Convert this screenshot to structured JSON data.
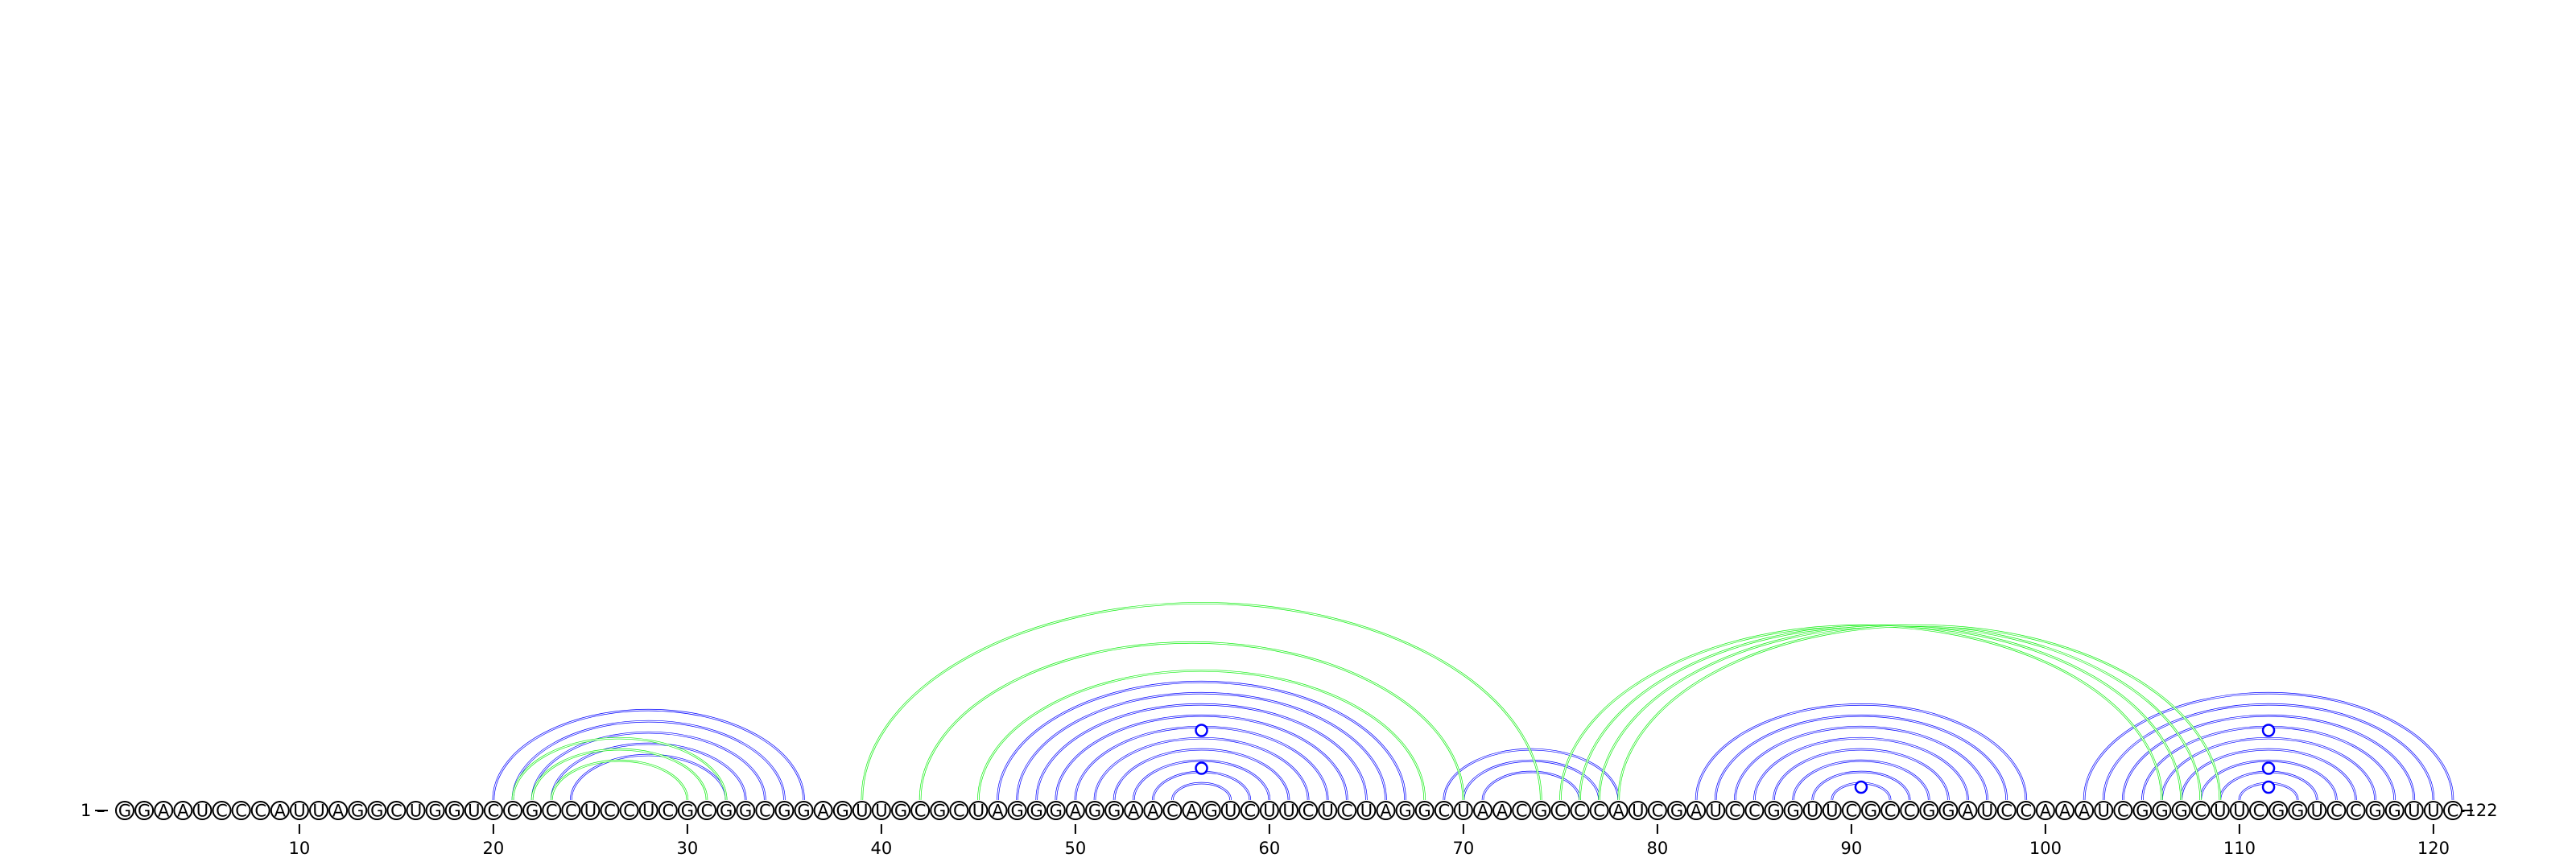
{
  "diagram": {
    "sequence": "GGAAUCCCAUUAGGCUGGUCCGCCUCCUCGCGGCGGAGUUGCGCUAGGGAGGAACAGUCUUCUCUAGGCUAACGCCCAUCGAUCCGGUUCGCCGGAUCCAAAUCGGGCUUCGGUCCGGUUC",
    "start_label": "1 –",
    "end_label": "–122",
    "ticks": [
      "10",
      "20",
      "30",
      "40",
      "50",
      "60",
      "70",
      "80",
      "90",
      "100",
      "110",
      "120"
    ],
    "colors": {
      "blue_pairs": "#0000ff",
      "green_pairs": "#11ee11",
      "nucleotide_outline": "#000000"
    },
    "blue_pairs": [
      [
        20,
        36
      ],
      [
        21,
        35
      ],
      [
        22,
        34
      ],
      [
        23,
        33
      ],
      [
        24,
        32
      ],
      [
        46,
        67
      ],
      [
        47,
        66
      ],
      [
        48,
        65
      ],
      [
        49,
        64
      ],
      [
        50,
        63
      ],
      [
        51,
        62
      ],
      [
        52,
        61
      ],
      [
        53,
        60
      ],
      [
        54,
        59
      ],
      [
        55,
        58
      ],
      [
        69,
        78
      ],
      [
        70,
        77
      ],
      [
        71,
        76
      ],
      [
        82,
        99
      ],
      [
        83,
        98
      ],
      [
        84,
        97
      ],
      [
        85,
        96
      ],
      [
        86,
        95
      ],
      [
        87,
        94
      ],
      [
        88,
        93
      ],
      [
        89,
        92
      ],
      [
        102,
        121
      ],
      [
        103,
        120
      ],
      [
        104,
        119
      ],
      [
        105,
        118
      ],
      [
        106,
        117
      ],
      [
        107,
        116
      ],
      [
        108,
        115
      ],
      [
        109,
        114
      ],
      [
        110,
        113
      ]
    ],
    "green_pairs": [
      [
        21,
        32
      ],
      [
        22,
        31
      ],
      [
        23,
        30
      ],
      [
        39,
        74
      ],
      [
        42,
        70
      ],
      [
        45,
        68
      ],
      [
        75,
        106
      ],
      [
        76,
        107
      ],
      [
        77,
        108
      ],
      [
        78,
        109
      ]
    ],
    "loop_markers": [
      {
        "i": 56.5,
        "j": 56.5,
        "color": "blue",
        "level": 3
      },
      {
        "i": 56.5,
        "j": 56.5,
        "color": "blue",
        "level": 1
      },
      {
        "i": 90.5,
        "j": 90.5,
        "color": "blue",
        "level": 0
      },
      {
        "i": 111.5,
        "j": 111.5,
        "color": "blue",
        "level": 0
      },
      {
        "i": 111.5,
        "j": 111.5,
        "color": "blue",
        "level": 1
      },
      {
        "i": 111.5,
        "j": 111.5,
        "color": "blue",
        "level": 3
      }
    ]
  }
}
